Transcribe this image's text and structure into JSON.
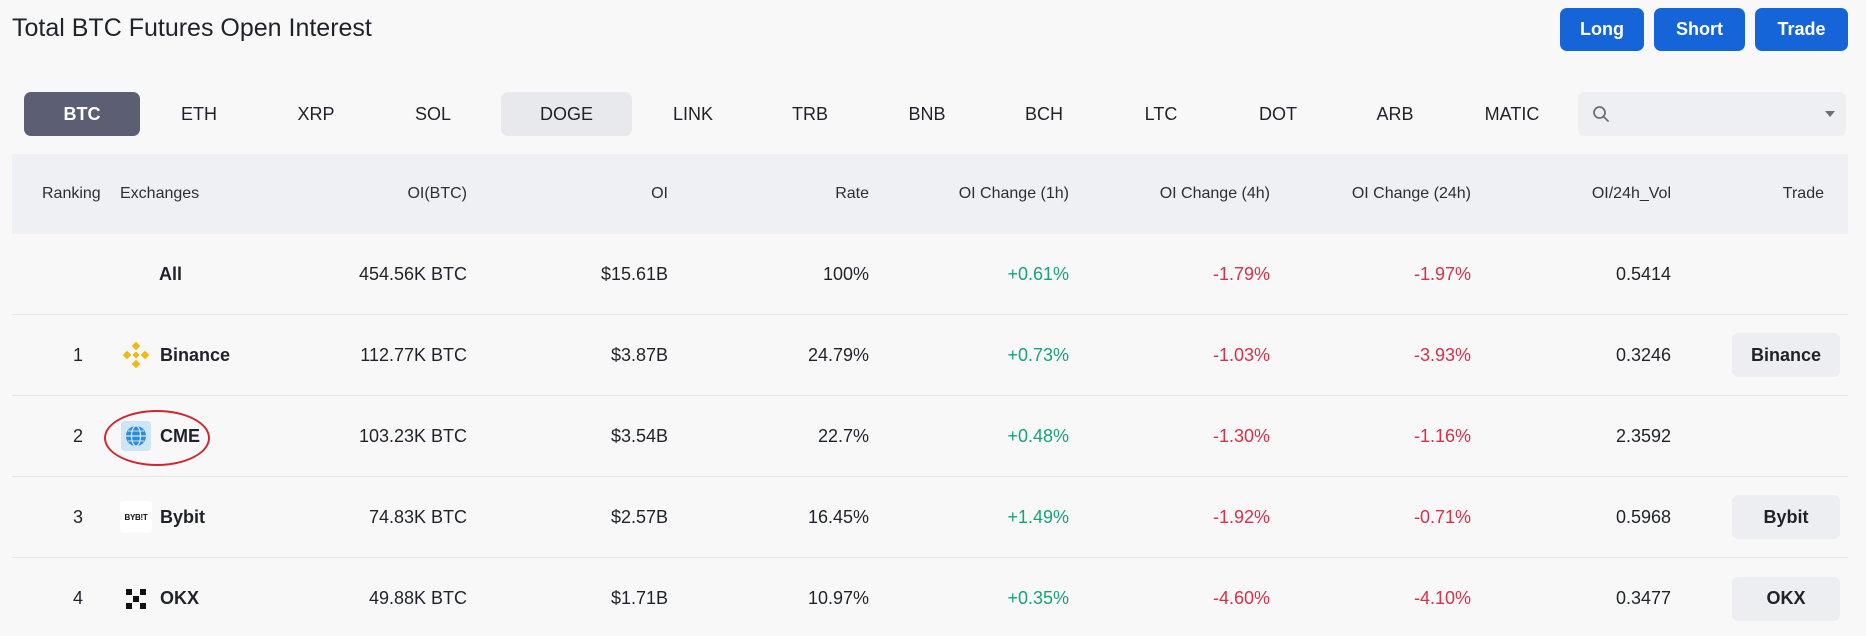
{
  "header": {
    "title": "Total BTC Futures Open Interest"
  },
  "actions": {
    "long_label": "Long",
    "short_label": "Short",
    "trade_label": "Trade"
  },
  "coins": [
    "BTC",
    "ETH",
    "XRP",
    "SOL",
    "DOGE",
    "LINK",
    "TRB",
    "BNB",
    "BCH",
    "LTC",
    "DOT",
    "ARB",
    "MATIC"
  ],
  "selected_coin": "BTC",
  "search": {
    "placeholder": ""
  },
  "table": {
    "columns": [
      "Ranking",
      "Exchanges",
      "OI(BTC)",
      "OI",
      "Rate",
      "OI Change (1h)",
      "OI Change (4h)",
      "OI Change (24h)",
      "OI/24h_Vol",
      "Trade"
    ],
    "all_row": {
      "label": "All",
      "oi_btc": "454.56K BTC",
      "oi": "$15.61B",
      "rate": "100%",
      "change_1h": "+0.61%",
      "change_4h": "-1.79%",
      "change_24h": "-1.97%",
      "oi_vol": "0.5414"
    },
    "rows": [
      {
        "rank": "1",
        "exchange": "Binance",
        "logo": "binance-logo",
        "oi_btc": "112.77K BTC",
        "oi": "$3.87B",
        "rate": "24.79%",
        "change_1h": "+0.73%",
        "change_4h": "-1.03%",
        "change_24h": "-3.93%",
        "oi_vol": "0.3246",
        "trade_label": "Binance"
      },
      {
        "rank": "2",
        "exchange": "CME",
        "logo": "cme-globe-logo",
        "oi_btc": "103.23K BTC",
        "oi": "$3.54B",
        "rate": "22.7%",
        "change_1h": "+0.48%",
        "change_4h": "-1.30%",
        "change_24h": "-1.16%",
        "oi_vol": "2.3592",
        "trade_label": ""
      },
      {
        "rank": "3",
        "exchange": "Bybit",
        "logo": "bybit-logo",
        "logo_text": "BYB!T",
        "oi_btc": "74.83K BTC",
        "oi": "$2.57B",
        "rate": "16.45%",
        "change_1h": "+1.49%",
        "change_4h": "-1.92%",
        "change_24h": "-0.71%",
        "oi_vol": "0.5968",
        "trade_label": "Bybit"
      },
      {
        "rank": "4",
        "exchange": "OKX",
        "logo": "okx-logo",
        "oi_btc": "49.88K BTC",
        "oi": "$1.71B",
        "rate": "10.97%",
        "change_1h": "+0.35%",
        "change_4h": "-4.60%",
        "change_24h": "-4.10%",
        "oi_vol": "0.3477",
        "trade_label": "OKX"
      }
    ]
  },
  "colors": {
    "primary": "#1565d8",
    "positive": "#17a37a",
    "negative": "#d9304a",
    "active_tab": "#5c5f74",
    "highlight": "#d0262f"
  }
}
